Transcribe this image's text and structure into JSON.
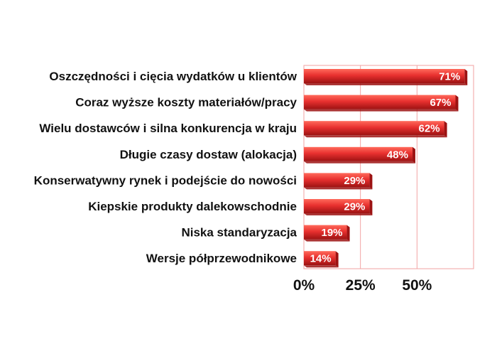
{
  "chart_data": {
    "type": "bar",
    "orientation": "horizontal",
    "categories": [
      "Oszczędności i cięcia wydatków u klientów",
      "Coraz wyższe koszty materiałów/pracy",
      "Wielu dostawców i silna konkurencja w kraju",
      "Długie czasy dostaw (alokacja)",
      "Konserwatywny rynek i podejście do nowości",
      "Kiepskie produkty dalekowschodnie",
      "Niska standaryzacja",
      "Wersje półprzewodnikowe"
    ],
    "values": [
      71,
      67,
      62,
      48,
      29,
      29,
      19,
      14
    ],
    "value_labels": [
      "71%",
      "67%",
      "62%",
      "48%",
      "29%",
      "29%",
      "19%",
      "14%"
    ],
    "x_ticks": [
      {
        "value": 0,
        "label": "0%"
      },
      {
        "value": 25,
        "label": "25%"
      },
      {
        "value": 50,
        "label": "50%"
      }
    ],
    "xlim": [
      0,
      75
    ],
    "grid": true,
    "legend": "none",
    "colors": {
      "bar": "#e8302f",
      "bar_dark": "#9c1212",
      "bar_light": "#ff6a5c",
      "grid": "#f2a2a2",
      "text": "#111111",
      "value_text": "#ffffff"
    }
  }
}
